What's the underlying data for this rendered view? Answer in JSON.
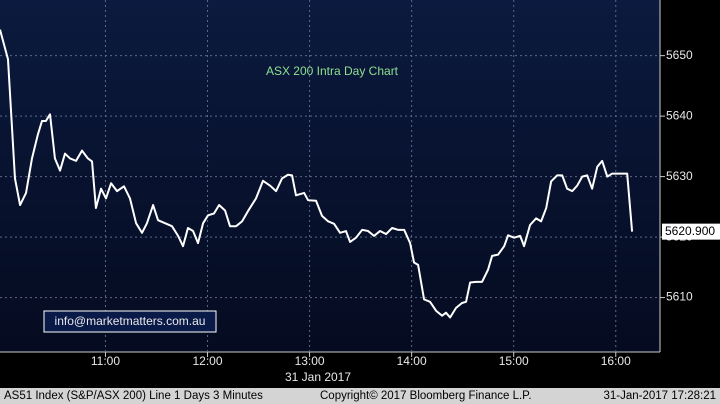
{
  "chart_data": {
    "type": "line",
    "title": "ASX 200 Intra Day Chart",
    "x_label": "31 Jan 2017",
    "annotation": "info@marketmatters.com.au",
    "footer": [
      "AS51 Index (S&P/ASX 200) Line 1 Days 3 Minutes",
      "Copyright© 2017 Bloomberg Finance L.P.",
      "31-Jan-2017 17:28:21"
    ],
    "price_tag": "5620.900",
    "x": [
      598,
      602.7,
      606.8,
      609.8,
      613.3,
      616.8,
      620.3,
      622.7,
      625,
      627.4,
      630.3,
      633.3,
      636.2,
      639.2,
      642.7,
      646.2,
      649.7,
      652.1,
      654.4,
      657.4,
      660.3,
      663.3,
      666.8,
      670.9,
      674.4,
      678,
      681.5,
      684.4,
      688,
      690.9,
      695,
      699.1,
      702.7,
      705.6,
      708.5,
      711.5,
      714.4,
      717.4,
      720.3,
      723.8,
      726.8,
      730.3,
      733.2,
      736.8,
      740.3,
      743.8,
      748.5,
      752.6,
      756.8,
      760.3,
      763.8,
      767.3,
      769.7,
      772,
      776.8,
      779.1,
      783.8,
      787.3,
      790.9,
      794.4,
      797.9,
      801.4,
      803.8,
      807.3,
      810.9,
      814.4,
      817.9,
      821.4,
      825,
      828.5,
      832,
      835.6,
      839.1,
      841.4,
      843.8,
      847.3,
      850.8,
      854.4,
      857.9,
      860.2,
      862.6,
      866.1,
      869.6,
      872,
      874.4,
      877.9,
      881.4,
      884.9,
      887.3,
      890.8,
      894.4,
      896.7,
      900.2,
      903.8,
      906.1,
      909.6,
      913.2,
      916.1,
      919.1,
      922,
      925.5,
      928.5,
      931.4,
      934.4,
      937.3,
      940.3,
      943.2,
      946.1,
      949.1,
      952,
      955,
      957.9,
      962.6,
      966.7,
      969.6
    ],
    "series": [
      {
        "color": "#ffffff",
        "values": [
          5654.3,
          5649.4,
          5629.7,
          5625.3,
          5627.3,
          5633,
          5637,
          5639.2,
          5639.2,
          5640.3,
          5633,
          5631,
          5633.8,
          5633,
          5632.6,
          5634.3,
          5633,
          5632.5,
          5624.8,
          5628,
          5626.4,
          5628.9,
          5627.6,
          5628.4,
          5626.4,
          5622.3,
          5620.7,
          5622.3,
          5625.3,
          5622.8,
          5622.3,
          5621.8,
          5620.2,
          5618.5,
          5621.5,
          5621,
          5619,
          5622.3,
          5623.6,
          5623.9,
          5625.3,
          5624.4,
          5621.8,
          5621.8,
          5622.6,
          5624.3,
          5626.4,
          5629.3,
          5628.5,
          5627.6,
          5629.7,
          5630.3,
          5630.2,
          5626.9,
          5627.3,
          5626.1,
          5626,
          5623.5,
          5622.6,
          5622.2,
          5620.7,
          5621,
          5619.2,
          5619.9,
          5621.2,
          5621,
          5620.2,
          5621,
          5620.5,
          5621.5,
          5621.2,
          5621.2,
          5619,
          5615.8,
          5615.4,
          5609.7,
          5609.3,
          5607.8,
          5607,
          5607.5,
          5606.7,
          5608.3,
          5609.1,
          5609.3,
          5612.5,
          5612.6,
          5612.6,
          5614.6,
          5616.9,
          5617.1,
          5618.5,
          5620.3,
          5619.9,
          5620.2,
          5618.5,
          5622,
          5623.1,
          5622.6,
          5624.8,
          5629.2,
          5630.2,
          5630.2,
          5628,
          5627.6,
          5628.5,
          5630,
          5630.2,
          5628,
          5631.6,
          5632.6,
          5630,
          5630.5,
          5630.5,
          5630.5,
          5620.9
        ]
      }
    ],
    "xlim": [
      598,
      986
    ],
    "xticks": [
      {
        "value": 660,
        "label": "11:00"
      },
      {
        "value": 720,
        "label": "12:00"
      },
      {
        "value": 780,
        "label": "13:00"
      },
      {
        "value": 840,
        "label": "14:00"
      },
      {
        "value": 900,
        "label": "15:00"
      },
      {
        "value": 960,
        "label": "16:00"
      }
    ],
    "ylim": [
      5601,
      5659.2
    ],
    "yticks": [
      5610,
      5620,
      5630,
      5640,
      5650
    ],
    "grid": true
  }
}
